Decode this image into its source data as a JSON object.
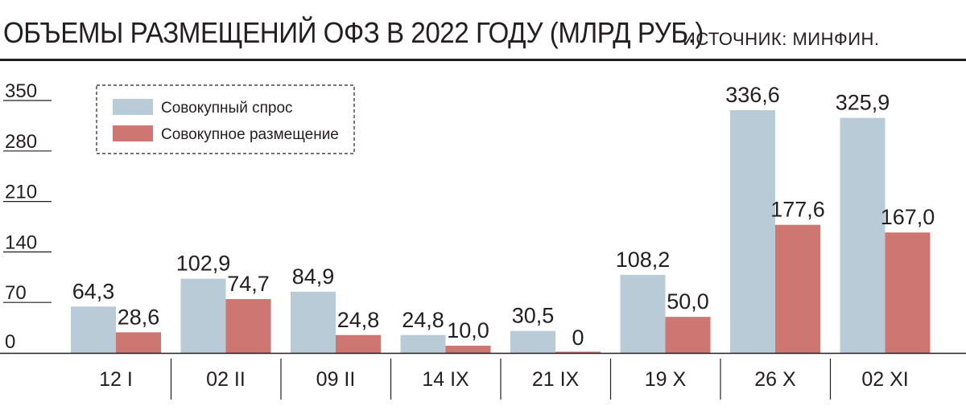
{
  "chart_data": {
    "type": "bar",
    "title": "ОБЪЕМЫ РАЗМЕЩЕНИЙ ОФЗ В 2022 ГОДУ (МЛРД РУБ.)",
    "source": "ИСТОЧНИК: МИНФИН.",
    "categories": [
      "12 I",
      "02 II",
      "09 II",
      "14 IX",
      "21 IX",
      "19 X",
      "26 X",
      "02 XI"
    ],
    "series": [
      {
        "name": "Совокупный спрос",
        "color": "#b9cbd6",
        "values": [
          64.3,
          102.9,
          84.9,
          24.8,
          30.5,
          108.2,
          336.6,
          325.9
        ],
        "labels": [
          "64,3",
          "102,9",
          "84,9",
          "24,8",
          "30,5",
          "108,2",
          "336,6",
          "325,9"
        ]
      },
      {
        "name": "Совокупное размещение",
        "color": "#cd7672",
        "values": [
          28.6,
          74.7,
          24.8,
          10.0,
          0,
          50.0,
          177.6,
          167.0
        ],
        "labels": [
          "28,6",
          "74,7",
          "24,8",
          "10,0",
          "0",
          "50,0",
          "177,6",
          "167,0"
        ]
      }
    ],
    "yticks": [
      "350",
      "280",
      "210",
      "140",
      "70",
      "0"
    ],
    "ylim": [
      0,
      350
    ],
    "grid": false,
    "legend": "top-left"
  }
}
